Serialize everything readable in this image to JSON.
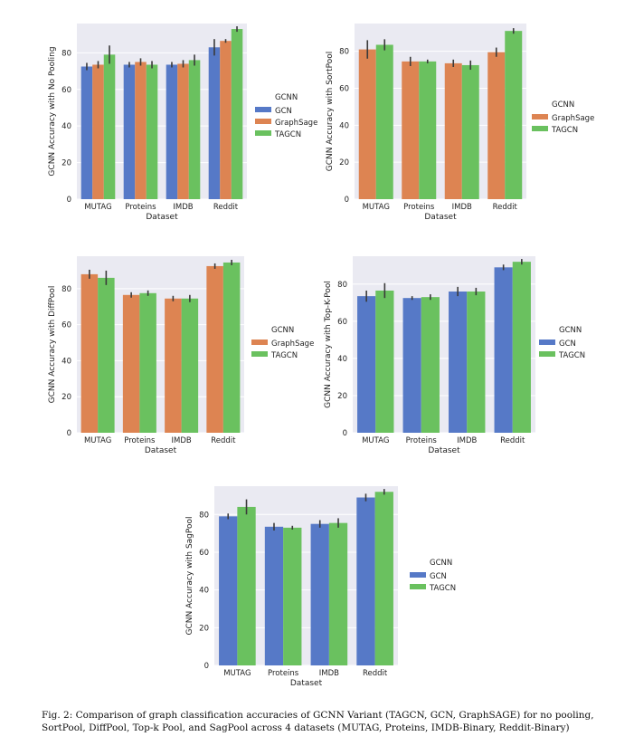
{
  "colors": {
    "GCN": "#5679c7",
    "GraphSage": "#dd8452",
    "TAGCN": "#6ac15f"
  },
  "caption": "Fig. 2: Comparison of graph classification accuracies of GCNN Variant (TAGCN, GCN, GraphSAGE) for no pooling, SortPool, DiffPool, Top-k Pool, and SagPool across 4 datasets (MUTAG, Proteins, IMDB-Binary, Reddit-Binary)",
  "chart_data": [
    {
      "type": "bar",
      "ylabel": "GCNN Accuracy with No Pooling",
      "xlabel": "Dataset",
      "categories": [
        "MUTAG",
        "Proteins",
        "IMDB",
        "Reddit"
      ],
      "ylim": [
        0,
        96
      ],
      "yticks": [
        0,
        20,
        40,
        60,
        80
      ],
      "legend_title": "GCNN",
      "series": [
        {
          "name": "GCN",
          "values": [
            72.5,
            73.5,
            73.5,
            83
          ],
          "err": [
            2,
            1.5,
            1.5,
            4.5
          ]
        },
        {
          "name": "GraphSage",
          "values": [
            73.5,
            75,
            74,
            86.5
          ],
          "err": [
            2,
            2,
            2,
            1
          ]
        },
        {
          "name": "TAGCN",
          "values": [
            79,
            73.5,
            76,
            93
          ],
          "err": [
            5,
            2,
            3,
            1.5
          ]
        }
      ]
    },
    {
      "type": "bar",
      "ylabel": "GCNN Accuracy with SortPool",
      "xlabel": "Dataset",
      "categories": [
        "MUTAG",
        "Proteins",
        "IMDB",
        "Reddit"
      ],
      "ylim": [
        0,
        95
      ],
      "yticks": [
        0,
        20,
        40,
        60,
        80
      ],
      "legend_title": "GCNN",
      "series": [
        {
          "name": "GraphSage",
          "values": [
            81,
            74.5,
            73.5,
            79.5
          ],
          "err": [
            5,
            2.5,
            2,
            2.5
          ]
        },
        {
          "name": "TAGCN",
          "values": [
            83.5,
            74.5,
            72.5,
            91
          ],
          "err": [
            3,
            1,
            2.5,
            1.5
          ]
        }
      ]
    },
    {
      "type": "bar",
      "ylabel": "GCNN Accuracy with DiffPool",
      "xlabel": "Dataset",
      "categories": [
        "MUTAG",
        "Proteins",
        "IMDB",
        "Reddit"
      ],
      "ylim": [
        0,
        98
      ],
      "yticks": [
        0,
        20,
        40,
        60,
        80
      ],
      "legend_title": "GCNN",
      "series": [
        {
          "name": "GraphSage",
          "values": [
            88,
            76.5,
            74.5,
            92.5
          ],
          "err": [
            2.5,
            1.5,
            1.5,
            1.5
          ]
        },
        {
          "name": "TAGCN",
          "values": [
            86,
            77.5,
            74.5,
            94.5
          ],
          "err": [
            4,
            1.5,
            2,
            1.5
          ]
        }
      ]
    },
    {
      "type": "bar",
      "ylabel": "GCNN Accuracy with Top-K-Pool",
      "xlabel": "Dataset",
      "categories": [
        "MUTAG",
        "Proteins",
        "IMDB",
        "Reddit"
      ],
      "ylim": [
        0,
        95
      ],
      "yticks": [
        0,
        20,
        40,
        60,
        80
      ],
      "legend_title": "GCNN",
      "series": [
        {
          "name": "GCN",
          "values": [
            73.5,
            72.5,
            76,
            89
          ],
          "err": [
            3,
            1,
            2.5,
            1.5
          ]
        },
        {
          "name": "TAGCN",
          "values": [
            76.5,
            73,
            76,
            92
          ],
          "err": [
            4,
            1.5,
            2,
            1.5
          ]
        }
      ]
    },
    {
      "type": "bar",
      "ylabel": "GCNN Accuracy with SagPool",
      "xlabel": "Dataset",
      "categories": [
        "MUTAG",
        "Proteins",
        "IMDB",
        "Reddit"
      ],
      "ylim": [
        0,
        95
      ],
      "yticks": [
        0,
        20,
        40,
        60,
        80
      ],
      "legend_title": "GCNN",
      "series": [
        {
          "name": "GCN",
          "values": [
            79,
            73.5,
            75,
            89
          ],
          "err": [
            1.5,
            2,
            2,
            2
          ]
        },
        {
          "name": "TAGCN",
          "values": [
            84,
            73,
            75.5,
            92
          ],
          "err": [
            4,
            1,
            2.5,
            1.5
          ]
        }
      ]
    }
  ]
}
